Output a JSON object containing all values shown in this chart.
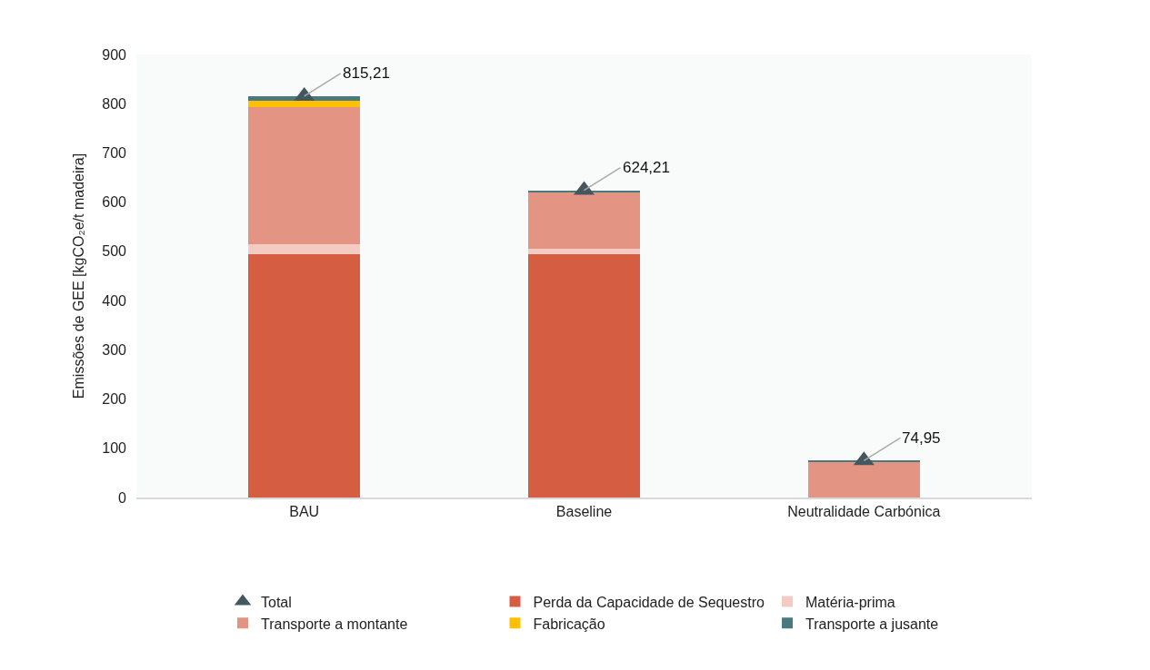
{
  "chart_data": {
    "type": "bar",
    "stacked": true,
    "ylabel": "Emissões de GEE [kgCO₂e/t madeira]",
    "categories": [
      "BAU",
      "Baseline",
      "Neutralidade Carbónica"
    ],
    "series": [
      {
        "name": "Perda da Capacidade de Sequestro",
        "color": "#d45d42",
        "values": [
          495,
          495,
          0
        ]
      },
      {
        "name": "Matéria-prima",
        "color": "#f4cbc3",
        "values": [
          19,
          10,
          0
        ]
      },
      {
        "name": "Transporte a montante",
        "color": "#e49483",
        "values": [
          279,
          114,
          72
        ]
      },
      {
        "name": "Fabricação",
        "color": "#ffc000",
        "values": [
          13,
          0,
          0
        ]
      },
      {
        "name": "Transporte a jusante",
        "color": "#4a7a80",
        "values": [
          9.21,
          5.21,
          2.95
        ]
      },
      {
        "name": "Total",
        "type": "scatter",
        "marker": "triangle",
        "color": "#44575f",
        "values": [
          815.21,
          624.21,
          74.95
        ],
        "value_labels": [
          "815,21",
          "624,21",
          "74,95"
        ]
      }
    ],
    "ylim": [
      0,
      900
    ],
    "yticks": [
      0,
      100,
      200,
      300,
      400,
      500,
      600,
      700,
      800,
      900
    ],
    "grid": false,
    "legend": "bottom"
  }
}
